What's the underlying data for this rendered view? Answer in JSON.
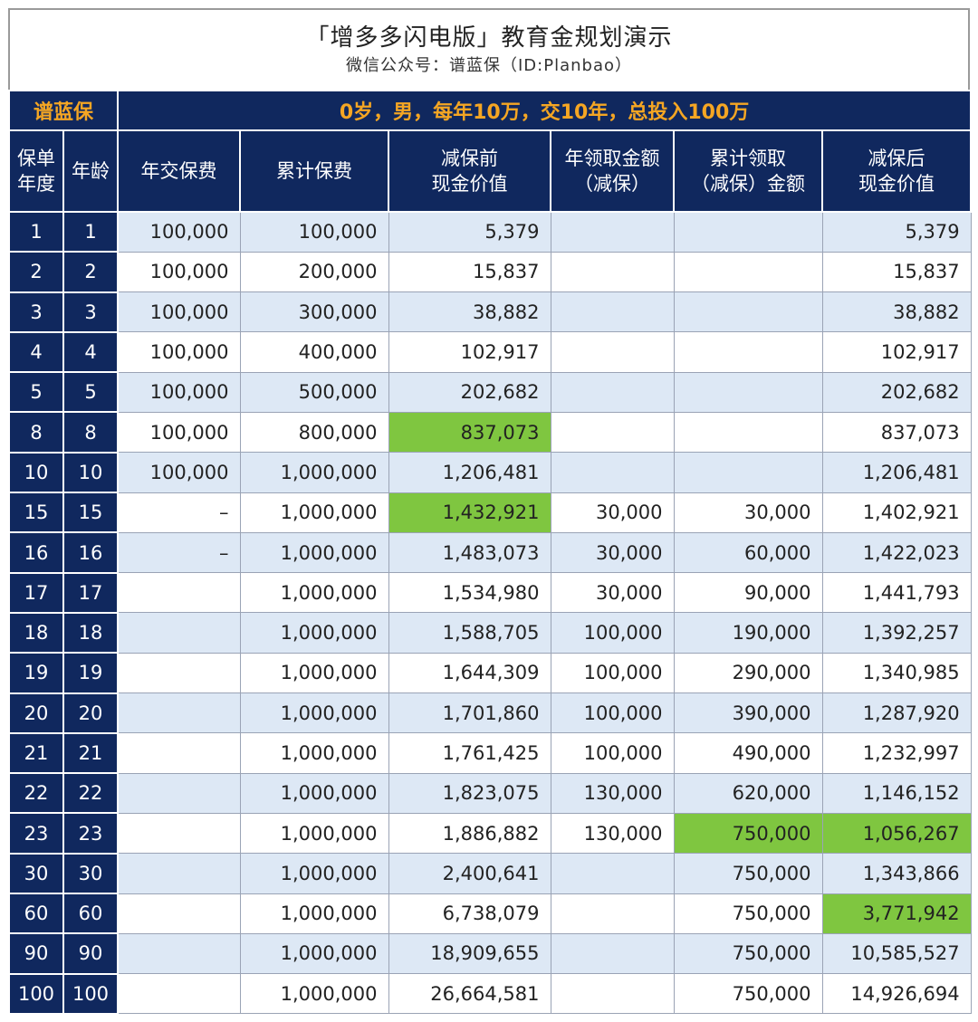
{
  "title": "「增多多闪电版」教育金规划演示",
  "subtitle": "微信公众号：谱蓝保（ID:Planbao）",
  "brand": "谱蓝保",
  "scenario": "0岁，男，每年10万，交10年，总投入100万",
  "headers": {
    "year": [
      "保单",
      "年度"
    ],
    "age": "年龄",
    "annual_premium": "年交保费",
    "cumulative_premium": "累计保费",
    "cash_value_before": [
      "减保前",
      "现金价值"
    ],
    "annual_withdrawal": [
      "年领取金额",
      "（减保）"
    ],
    "cumulative_withdrawal": [
      "累计领取",
      "（减保）金额"
    ],
    "cash_value_after": [
      "减保后",
      "现金价值"
    ]
  },
  "highlight_color": "#7fc640",
  "rows": [
    {
      "year": "1",
      "age": "1",
      "annual": "100,000",
      "cum": "100,000",
      "before": "5,379",
      "wd": "",
      "cumwd": "",
      "after": "5,379"
    },
    {
      "year": "2",
      "age": "2",
      "annual": "100,000",
      "cum": "200,000",
      "before": "15,837",
      "wd": "",
      "cumwd": "",
      "after": "15,837"
    },
    {
      "year": "3",
      "age": "3",
      "annual": "100,000",
      "cum": "300,000",
      "before": "38,882",
      "wd": "",
      "cumwd": "",
      "after": "38,882"
    },
    {
      "year": "4",
      "age": "4",
      "annual": "100,000",
      "cum": "400,000",
      "before": "102,917",
      "wd": "",
      "cumwd": "",
      "after": "102,917"
    },
    {
      "year": "5",
      "age": "5",
      "annual": "100,000",
      "cum": "500,000",
      "before": "202,682",
      "wd": "",
      "cumwd": "",
      "after": "202,682"
    },
    {
      "year": "8",
      "age": "8",
      "annual": "100,000",
      "cum": "800,000",
      "before": "837,073",
      "wd": "",
      "cumwd": "",
      "after": "837,073",
      "hl": [
        "before"
      ]
    },
    {
      "year": "10",
      "age": "10",
      "annual": "100,000",
      "cum": "1,000,000",
      "before": "1,206,481",
      "wd": "",
      "cumwd": "",
      "after": "1,206,481"
    },
    {
      "year": "15",
      "age": "15",
      "annual": "–",
      "cum": "1,000,000",
      "before": "1,432,921",
      "wd": "30,000",
      "cumwd": "30,000",
      "after": "1,402,921",
      "hl": [
        "before"
      ]
    },
    {
      "year": "16",
      "age": "16",
      "annual": "–",
      "cum": "1,000,000",
      "before": "1,483,073",
      "wd": "30,000",
      "cumwd": "60,000",
      "after": "1,422,023"
    },
    {
      "year": "17",
      "age": "17",
      "annual": "",
      "cum": "1,000,000",
      "before": "1,534,980",
      "wd": "30,000",
      "cumwd": "90,000",
      "after": "1,441,793"
    },
    {
      "year": "18",
      "age": "18",
      "annual": "",
      "cum": "1,000,000",
      "before": "1,588,705",
      "wd": "100,000",
      "cumwd": "190,000",
      "after": "1,392,257"
    },
    {
      "year": "19",
      "age": "19",
      "annual": "",
      "cum": "1,000,000",
      "before": "1,644,309",
      "wd": "100,000",
      "cumwd": "290,000",
      "after": "1,340,985"
    },
    {
      "year": "20",
      "age": "20",
      "annual": "",
      "cum": "1,000,000",
      "before": "1,701,860",
      "wd": "100,000",
      "cumwd": "390,000",
      "after": "1,287,920"
    },
    {
      "year": "21",
      "age": "21",
      "annual": "",
      "cum": "1,000,000",
      "before": "1,761,425",
      "wd": "100,000",
      "cumwd": "490,000",
      "after": "1,232,997"
    },
    {
      "year": "22",
      "age": "22",
      "annual": "",
      "cum": "1,000,000",
      "before": "1,823,075",
      "wd": "130,000",
      "cumwd": "620,000",
      "after": "1,146,152"
    },
    {
      "year": "23",
      "age": "23",
      "annual": "",
      "cum": "1,000,000",
      "before": "1,886,882",
      "wd": "130,000",
      "cumwd": "750,000",
      "after": "1,056,267",
      "hl": [
        "cumwd",
        "after"
      ]
    },
    {
      "year": "30",
      "age": "30",
      "annual": "",
      "cum": "1,000,000",
      "before": "2,400,641",
      "wd": "",
      "cumwd": "750,000",
      "after": "1,343,866"
    },
    {
      "year": "60",
      "age": "60",
      "annual": "",
      "cum": "1,000,000",
      "before": "6,738,079",
      "wd": "",
      "cumwd": "750,000",
      "after": "3,771,942",
      "hl": [
        "after"
      ]
    },
    {
      "year": "90",
      "age": "90",
      "annual": "",
      "cum": "1,000,000",
      "before": "18,909,655",
      "wd": "",
      "cumwd": "750,000",
      "after": "10,585,527"
    },
    {
      "year": "100",
      "age": "100",
      "annual": "",
      "cum": "1,000,000",
      "before": "26,664,581",
      "wd": "",
      "cumwd": "750,000",
      "after": "14,926,694"
    }
  ]
}
